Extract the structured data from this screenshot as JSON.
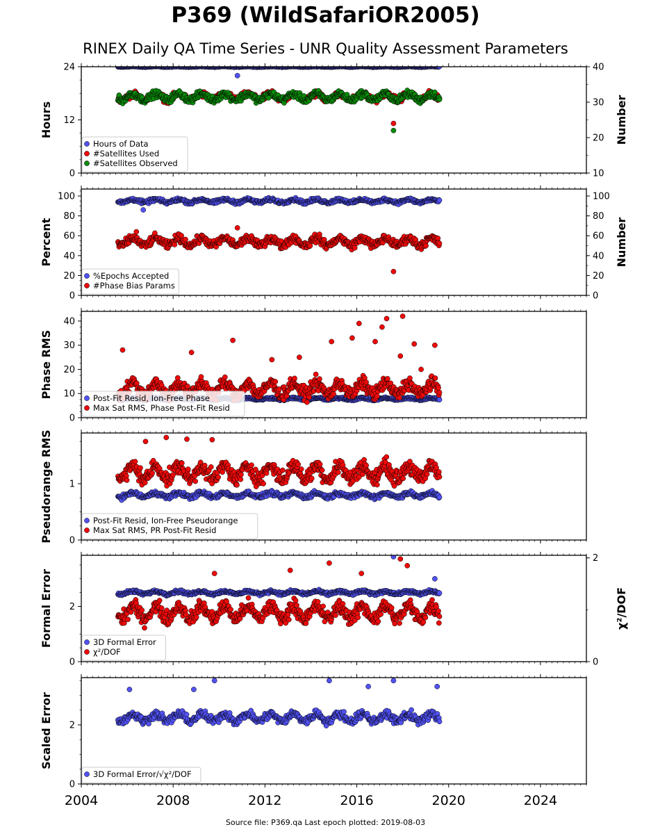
{
  "title": "P369 (WildSafariOR2005)",
  "subtitle": "RINEX Daily QA Time Series - UNR Quality Assessment Parameters",
  "source": "Source file: P369.qa Last epoch plotted: 2019-08-03",
  "colors": {
    "blue": "#5252f5",
    "red": "#ee0a0a",
    "green": "#0a8a0a",
    "outline": "#000000"
  },
  "chart_data": [
    {
      "type": "scatter",
      "ylabel": "Hours",
      "y2label": "Number",
      "xlim": [
        2004,
        2026
      ],
      "ylim": [
        0,
        24
      ],
      "y2lim": [
        10,
        40
      ],
      "yticks": [
        0,
        12,
        24
      ],
      "y2ticks": [
        10,
        20,
        30,
        40
      ],
      "legend": "lower-left",
      "series": [
        {
          "name": "Hours of Data",
          "color": "blue",
          "axis": "left",
          "x_range": [
            2005.6,
            2019.6
          ],
          "center": 24.0,
          "spread": 0.1,
          "outliers": [
            [
              2010.8,
              22.0
            ]
          ]
        },
        {
          "name": "#Satellites Used",
          "color": "red",
          "axis": "right",
          "x_range": [
            2005.6,
            2019.6
          ],
          "center": 31.5,
          "spread": 1.3,
          "outliers": [
            [
              2017.6,
              24.0
            ],
            [
              2008.8,
              30.0
            ]
          ]
        },
        {
          "name": "#Satellites Observed",
          "color": "green",
          "axis": "right",
          "x_range": [
            2005.6,
            2019.6
          ],
          "center": 31.5,
          "spread": 1.4,
          "outliers": [
            [
              2017.6,
              22.0
            ]
          ]
        }
      ]
    },
    {
      "type": "scatter",
      "ylabel": "Percent",
      "y2label": "Number",
      "xlim": [
        2004,
        2026
      ],
      "ylim": [
        0,
        107
      ],
      "y2lim": [
        0,
        107
      ],
      "yticks": [
        0,
        20,
        40,
        60,
        80,
        100
      ],
      "y2ticks": [
        0,
        20,
        40,
        60,
        80,
        100
      ],
      "legend": "lower-left",
      "series": [
        {
          "name": "%Epochs Accepted",
          "color": "blue",
          "axis": "left",
          "x_range": [
            2005.6,
            2019.6
          ],
          "center": 95,
          "spread": 2.5,
          "outliers": [
            [
              2006.7,
              86
            ]
          ]
        },
        {
          "name": "#Phase Bias Params",
          "color": "red",
          "axis": "right",
          "x_range": [
            2005.6,
            2019.6
          ],
          "center": 54,
          "spread": 6,
          "outliers": [
            [
              2017.6,
              24
            ],
            [
              2006.4,
              64
            ],
            [
              2010.8,
              68
            ]
          ]
        }
      ]
    },
    {
      "type": "scatter",
      "ylabel": "Phase RMS",
      "xlim": [
        2004,
        2026
      ],
      "ylim": [
        0,
        44
      ],
      "yticks": [
        0,
        10,
        20,
        30,
        40
      ],
      "legend": "lower-left",
      "series": [
        {
          "name": "Post-Fit Resid, Ion-Free Phase",
          "color": "blue",
          "axis": "left",
          "x_range": [
            2005.6,
            2019.6
          ],
          "center": 7.8,
          "spread": 0.6,
          "outliers": []
        },
        {
          "name": "Max Sat RMS, Phase Post-Fit Resid",
          "color": "red",
          "axis": "left",
          "x_range": [
            2005.6,
            2019.6
          ],
          "center": 12,
          "spread": 4,
          "outliers": [
            [
              2018.0,
              42
            ],
            [
              2017.3,
              41
            ],
            [
              2016.1,
              39
            ],
            [
              2017.1,
              37.5
            ],
            [
              2015.8,
              33
            ],
            [
              2014.9,
              31.5
            ],
            [
              2010.6,
              32
            ],
            [
              2016.8,
              31.5
            ],
            [
              2018.5,
              30.5
            ],
            [
              2019.4,
              30
            ],
            [
              2005.8,
              28
            ],
            [
              2008.8,
              27
            ],
            [
              2017.9,
              25.5
            ],
            [
              2018.8,
              20
            ],
            [
              2013.5,
              25
            ],
            [
              2012.3,
              24
            ]
          ]
        }
      ]
    },
    {
      "type": "scatter",
      "ylabel": "Pseudorange RMS",
      "xlim": [
        2004,
        2026
      ],
      "ylim": [
        0,
        1.9
      ],
      "yticks": [
        0,
        1
      ],
      "legend": "lower-left",
      "series": [
        {
          "name": "Post-Fit Resid, Ion-Free Pseudorange",
          "color": "blue",
          "axis": "left",
          "x_range": [
            2005.6,
            2019.6
          ],
          "center": 0.8,
          "spread": 0.06,
          "outliers": []
        },
        {
          "name": "Max Sat RMS, PR Post-Fit Resid",
          "color": "red",
          "axis": "left",
          "x_range": [
            2005.6,
            2019.6
          ],
          "center": 1.2,
          "spread": 0.2,
          "outliers": [
            [
              2007.7,
              1.82
            ],
            [
              2008.6,
              1.79
            ],
            [
              2009.7,
              1.78
            ],
            [
              2006.8,
              1.75
            ]
          ]
        }
      ]
    },
    {
      "type": "scatter",
      "ylabel": "Formal Error",
      "y2label": "χ²/DOF",
      "xlim": [
        2004,
        2026
      ],
      "ylim": [
        0,
        3.85
      ],
      "y2lim": [
        0,
        2.05
      ],
      "yticks": [
        0,
        2
      ],
      "y2ticks": [
        0,
        2
      ],
      "legend": "lower-left",
      "series": [
        {
          "name": "3D Formal Error",
          "color": "blue",
          "axis": "left",
          "x_range": [
            2005.6,
            2019.6
          ],
          "center": 2.5,
          "spread": 0.08,
          "outliers": [
            [
              2017.6,
              3.8
            ],
            [
              2019.4,
              3.0
            ]
          ]
        },
        {
          "name": "χ²/DOF",
          "color": "red",
          "axis": "right",
          "x_range": [
            2005.6,
            2019.6
          ],
          "center": 0.95,
          "spread": 0.2,
          "outliers": [
            [
              2017.9,
              1.98
            ],
            [
              2014.8,
              1.9
            ],
            [
              2013.1,
              1.76
            ],
            [
              2018.2,
              1.85
            ],
            [
              2009.8,
              1.7
            ],
            [
              2016.2,
              1.7
            ]
          ]
        }
      ]
    },
    {
      "type": "scatter",
      "ylabel": "Scaled Error",
      "xlim": [
        2004,
        2026
      ],
      "ylim": [
        0,
        3.6
      ],
      "yticks": [
        0,
        2
      ],
      "xticks": [
        2004,
        2008,
        2012,
        2016,
        2020,
        2024
      ],
      "legend": "lower-left",
      "series": [
        {
          "name": "3D Formal Error/√χ²/DOF",
          "color": "blue",
          "axis": "left",
          "x_range": [
            2005.6,
            2019.6
          ],
          "center": 2.25,
          "spread": 0.2,
          "outliers": [
            [
              2009.8,
              3.5
            ],
            [
              2014.8,
              3.5
            ],
            [
              2017.6,
              3.5
            ],
            [
              2016.5,
              3.3
            ],
            [
              2006.1,
              3.2
            ],
            [
              2008.9,
              3.2
            ],
            [
              2019.5,
              3.3
            ]
          ]
        }
      ]
    }
  ]
}
